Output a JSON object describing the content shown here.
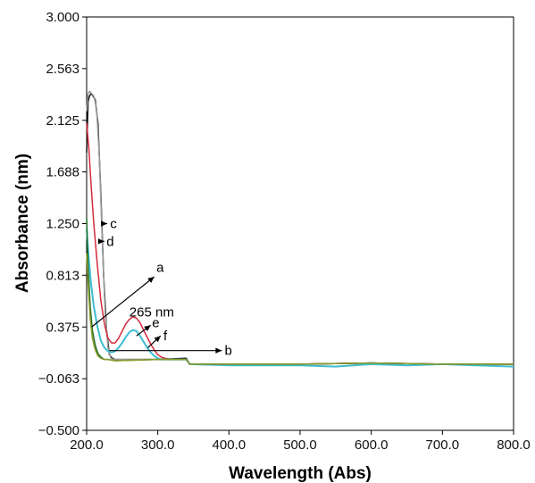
{
  "chart_data": {
    "type": "line",
    "title": "",
    "xlabel": "Wavelength (Abs)",
    "ylabel": "Absorbance (nm)",
    "xlim": [
      200,
      800
    ],
    "ylim": [
      -0.5,
      3.0
    ],
    "x_ticks": [
      "200.0",
      "300.0",
      "400.0",
      "500.0",
      "600.0",
      "700.0",
      "800.0"
    ],
    "x_tick_values": [
      200,
      300,
      400,
      500,
      600,
      700,
      800
    ],
    "y_ticks": [
      "−0.500",
      "−0.063",
      "0.375",
      "0.813",
      "1.250",
      "1.688",
      "2.125",
      "2.563",
      "3.000"
    ],
    "y_tick_values": [
      -0.5,
      -0.063,
      0.375,
      0.813,
      1.25,
      1.688,
      2.125,
      2.563,
      3.0
    ],
    "grid": false,
    "series": [
      {
        "color": "#111111",
        "x": [
          200,
          202,
          204,
          206,
          208,
          212,
          216,
          220,
          224,
          228,
          232,
          236,
          240,
          250,
          300,
          340,
          345,
          400,
          500,
          600,
          700,
          800
        ],
        "y": [
          1.85,
          2.28,
          2.33,
          2.35,
          2.34,
          2.3,
          2.1,
          1.5,
          0.8,
          0.35,
          0.14,
          0.11,
          0.1,
          0.1,
          0.1,
          0.11,
          0.06,
          0.06,
          0.06,
          0.07,
          0.06,
          0.06
        ]
      },
      {
        "color": "#999999",
        "x": [
          200,
          202,
          204,
          206,
          210,
          214,
          218,
          222,
          226,
          230,
          234,
          238,
          245,
          300,
          340,
          345,
          400,
          500,
          600,
          700,
          800
        ],
        "y": [
          2.2,
          2.35,
          2.37,
          2.36,
          2.33,
          2.22,
          1.8,
          1.1,
          0.5,
          0.2,
          0.11,
          0.1,
          0.1,
          0.1,
          0.1,
          0.06,
          0.06,
          0.06,
          0.07,
          0.06,
          0.06
        ]
      },
      {
        "color": "#d42a3c",
        "x": [
          200,
          203,
          206,
          210,
          215,
          220,
          225,
          230,
          235,
          240,
          245,
          250,
          255,
          260,
          265,
          270,
          275,
          280,
          285,
          290,
          295,
          300,
          305,
          310,
          320,
          340,
          345,
          400,
          500,
          600,
          700,
          800
        ],
        "y": [
          2.1,
          1.9,
          1.6,
          1.25,
          0.9,
          0.6,
          0.4,
          0.28,
          0.24,
          0.24,
          0.28,
          0.34,
          0.4,
          0.44,
          0.46,
          0.45,
          0.41,
          0.35,
          0.29,
          0.23,
          0.18,
          0.14,
          0.12,
          0.11,
          0.1,
          0.1,
          0.06,
          0.06,
          0.06,
          0.07,
          0.06,
          0.06
        ]
      },
      {
        "color": "#3dbdd0",
        "x": [
          200,
          203,
          206,
          210,
          215,
          220,
          225,
          230,
          235,
          240,
          245,
          250,
          255,
          260,
          265,
          270,
          275,
          280,
          285,
          290,
          295,
          300,
          305,
          310,
          320,
          340,
          345,
          400,
          500,
          550,
          600,
          650,
          700,
          800
        ],
        "y": [
          1.2,
          0.95,
          0.75,
          0.55,
          0.38,
          0.26,
          0.2,
          0.17,
          0.16,
          0.17,
          0.2,
          0.24,
          0.29,
          0.33,
          0.35,
          0.34,
          0.3,
          0.25,
          0.2,
          0.16,
          0.13,
          0.11,
          0.1,
          0.1,
          0.1,
          0.1,
          0.06,
          0.05,
          0.05,
          0.04,
          0.06,
          0.05,
          0.06,
          0.04
        ]
      },
      {
        "color": "#1f6f2c",
        "x": [
          200,
          202,
          205,
          208,
          212,
          216,
          220,
          225,
          230,
          240,
          300,
          340,
          345,
          400,
          500,
          600,
          700,
          800
        ],
        "y": [
          1.3,
          0.9,
          0.55,
          0.35,
          0.22,
          0.15,
          0.12,
          0.1,
          0.1,
          0.09,
          0.1,
          0.1,
          0.06,
          0.06,
          0.06,
          0.07,
          0.06,
          0.06
        ]
      },
      {
        "color": "#8a9a2a",
        "x": [
          200,
          202,
          205,
          208,
          212,
          216,
          220,
          225,
          230,
          240,
          300,
          340,
          345,
          400,
          500,
          600,
          700,
          800
        ],
        "y": [
          1.0,
          0.75,
          0.45,
          0.28,
          0.18,
          0.13,
          0.11,
          0.1,
          0.1,
          0.09,
          0.1,
          0.1,
          0.06,
          0.06,
          0.06,
          0.07,
          0.06,
          0.06
        ]
      }
    ],
    "annotations": [
      {
        "text": "c",
        "x1": 221,
        "y1": 1.25,
        "x2": 229,
        "y2": 1.25,
        "tx": 233,
        "ty": 1.25,
        "anchor": "start"
      },
      {
        "text": "d",
        "x1": 216,
        "y1": 1.1,
        "x2": 225,
        "y2": 1.1,
        "tx": 228,
        "ty": 1.1,
        "anchor": "start"
      },
      {
        "text": "a",
        "x1": 207,
        "y1": 0.375,
        "x2": 295,
        "y2": 0.8,
        "tx": 298,
        "ty": 0.88,
        "anchor": "start"
      },
      {
        "text": "265 nm",
        "x1": null,
        "y1": null,
        "x2": null,
        "y2": null,
        "tx": 260,
        "ty": 0.5,
        "anchor": "start"
      },
      {
        "text": "e",
        "x1": 270,
        "y1": 0.3,
        "x2": 290,
        "y2": 0.39,
        "tx": 292,
        "ty": 0.41,
        "anchor": "start"
      },
      {
        "text": "f",
        "x1": 286,
        "y1": 0.2,
        "x2": 304,
        "y2": 0.3,
        "tx": 308,
        "ty": 0.3,
        "anchor": "start"
      },
      {
        "text": "b",
        "x1": 232,
        "y1": 0.175,
        "x2": 390,
        "y2": 0.175,
        "tx": 394,
        "ty": 0.175,
        "anchor": "start"
      }
    ]
  }
}
